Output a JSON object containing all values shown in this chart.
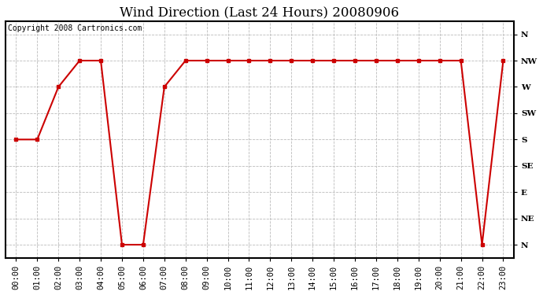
{
  "title": "Wind Direction (Last 24 Hours) 20080906",
  "copyright": "Copyright 2008 Cartronics.com",
  "x_labels": [
    "00:00",
    "01:00",
    "02:00",
    "03:00",
    "04:00",
    "05:00",
    "06:00",
    "07:00",
    "08:00",
    "09:00",
    "10:00",
    "11:00",
    "12:00",
    "13:00",
    "14:00",
    "15:00",
    "16:00",
    "17:00",
    "18:00",
    "19:00",
    "20:00",
    "21:00",
    "22:00",
    "23:00"
  ],
  "y_labels": [
    "N",
    "NE",
    "E",
    "SE",
    "S",
    "SW",
    "W",
    "NW",
    "N"
  ],
  "y_values": [
    0,
    1,
    2,
    3,
    4,
    5,
    6,
    7,
    8
  ],
  "wind_data": {
    "hours": [
      0,
      1,
      2,
      3,
      4,
      5,
      6,
      7,
      8,
      9,
      10,
      11,
      12,
      13,
      14,
      15,
      16,
      17,
      18,
      19,
      20,
      21,
      22,
      23
    ],
    "directions": [
      4,
      4,
      6,
      7,
      7,
      0,
      0,
      6,
      7,
      7,
      7,
      7,
      7,
      7,
      7,
      7,
      7,
      7,
      7,
      7,
      7,
      7,
      0,
      7
    ]
  },
  "line_color": "#cc0000",
  "marker": "s",
  "marker_size": 3,
  "background_color": "#ffffff",
  "plot_bg_color": "#ffffff",
  "grid_color": "#bbbbbb",
  "title_fontsize": 12,
  "tick_fontsize": 7.5,
  "copyright_fontsize": 7
}
